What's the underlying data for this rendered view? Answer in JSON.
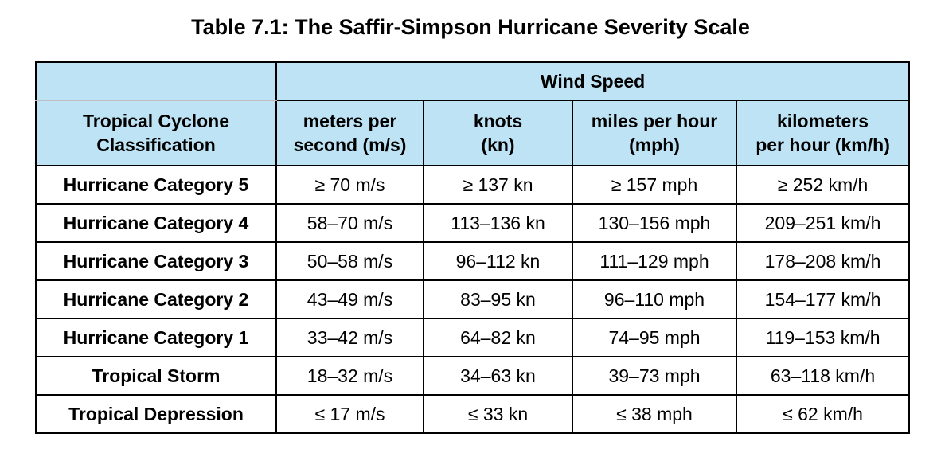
{
  "title": "Table 7.1: The Saffir-Simpson Hurricane Severity Scale",
  "table": {
    "group_header": "Wind Speed",
    "row_header_line1": "Tropical Cyclone",
    "row_header_line2": "Classification",
    "columns": [
      {
        "line1": "meters per",
        "line2": "second (m/s)"
      },
      {
        "line1": "knots",
        "line2": "(kn)"
      },
      {
        "line1": "miles per hour",
        "line2": "(mph)"
      },
      {
        "line1": "kilometers",
        "line2": "per hour (km/h)"
      }
    ],
    "rows": [
      {
        "label": "Hurricane Category 5",
        "cells": [
          "≥ 70 m/s",
          "≥ 137 kn",
          "≥ 157 mph",
          "≥ 252 km/h"
        ]
      },
      {
        "label": "Hurricane Category 4",
        "cells": [
          "58–70 m/s",
          "113–136 kn",
          "130–156 mph",
          "209–251 km/h"
        ]
      },
      {
        "label": "Hurricane Category 3",
        "cells": [
          "50–58 m/s",
          "96–112 kn",
          "111–129 mph",
          "178–208 km/h"
        ]
      },
      {
        "label": "Hurricane Category 2",
        "cells": [
          "43–49 m/s",
          "83–95 kn",
          "96–110 mph",
          "154–177 km/h"
        ]
      },
      {
        "label": "Hurricane Category 1",
        "cells": [
          "33–42 m/s",
          "64–82 kn",
          "74–95 mph",
          "119–153 km/h"
        ]
      },
      {
        "label": "Tropical Storm",
        "cells": [
          "18–32 m/s",
          "34–63 kn",
          "39–73 mph",
          "63–118 km/h"
        ]
      },
      {
        "label": "Tropical Depression",
        "cells": [
          "≤ 17 m/s",
          "≤ 33 kn",
          "≤ 38 mph",
          "≤ 62 km/h"
        ]
      }
    ]
  },
  "colors": {
    "header_background": "#bde3f4"
  }
}
